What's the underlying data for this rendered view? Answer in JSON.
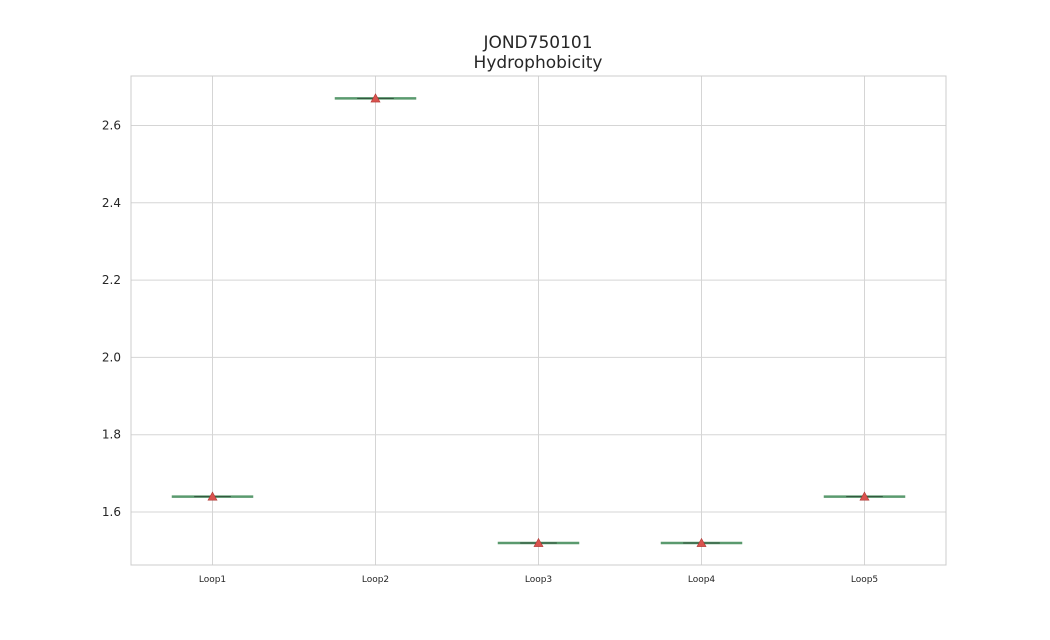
{
  "chart_data": {
    "type": "box",
    "title": "JOND750101",
    "subtitle": "Hydrophobicity",
    "xlabel": "",
    "ylabel": "",
    "ylim": [
      1.463,
      2.728
    ],
    "yticks": [
      "1.6",
      "1.8",
      "2.0",
      "2.2",
      "2.4",
      "2.6"
    ],
    "categories": [
      "Loop1",
      "Loop2",
      "Loop3",
      "Loop4",
      "Loop5"
    ],
    "values": [
      1.64,
      2.67,
      1.52,
      1.52,
      1.64
    ],
    "grid": true,
    "colors": {
      "box_line": "#5a9a6e",
      "mean_marker": "#d9534f",
      "grid": "#d5d5d5",
      "axes_edge": "#cccccc",
      "text": "#262626"
    }
  }
}
